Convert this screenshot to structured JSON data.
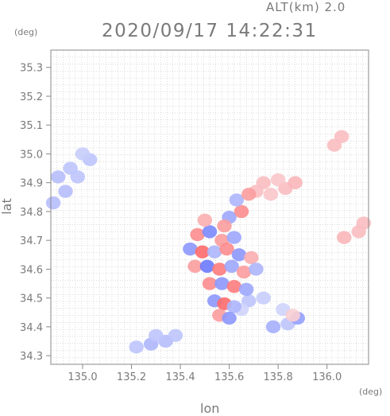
{
  "header": {
    "altitude_label": "ALT(km)  2.0",
    "timestamp": "2020/09/17 14:22:31"
  },
  "axes": {
    "y_unit": "(deg)",
    "x_unit": "(deg)",
    "y_title": "lat",
    "x_title": "lon"
  },
  "chart_data": {
    "type": "heatmap",
    "xlabel": "lon",
    "ylabel": "lat",
    "xlim": [
      134.87,
      136.17
    ],
    "ylim": [
      34.27,
      35.36
    ],
    "x_ticks": [
      {
        "value": 135.0,
        "label": "135.0"
      },
      {
        "value": 135.2,
        "label": "135.2"
      },
      {
        "value": 135.4,
        "label": "135.4"
      },
      {
        "value": 135.6,
        "label": "135.6"
      },
      {
        "value": 135.8,
        "label": "135.8"
      },
      {
        "value": 136.0,
        "label": "136.0"
      }
    ],
    "y_ticks": [
      {
        "value": 34.3,
        "label": "34.3"
      },
      {
        "value": 34.4,
        "label": "34.4"
      },
      {
        "value": 34.5,
        "label": "34.5"
      },
      {
        "value": 34.6,
        "label": "34.6"
      },
      {
        "value": 34.7,
        "label": "34.7"
      },
      {
        "value": 34.8,
        "label": "34.8"
      },
      {
        "value": 34.9,
        "label": "34.9"
      },
      {
        "value": 35.0,
        "label": "35.0"
      },
      {
        "value": 35.1,
        "label": "35.1"
      },
      {
        "value": 35.2,
        "label": "35.2"
      },
      {
        "value": 35.3,
        "label": "35.3"
      }
    ],
    "grid": true,
    "colors": {
      "grid": "#bdbdbd",
      "frame": "#888888",
      "negative": "#4a5cff",
      "negative_light": "#cfd4fb",
      "positive": "#ff4a4a",
      "positive_light": "#f9cfd2"
    },
    "regions": [
      {
        "name": "west-blue-patch",
        "cells": [
          [
            134.88,
            34.83,
            -0.35
          ],
          [
            134.93,
            34.87,
            -0.35
          ],
          [
            134.98,
            34.92,
            -0.3
          ],
          [
            135.03,
            34.98,
            -0.3
          ],
          [
            134.9,
            34.92,
            -0.35
          ],
          [
            134.95,
            34.95,
            -0.3
          ],
          [
            135.0,
            35.0,
            -0.25
          ]
        ]
      },
      {
        "name": "south-west-blue-patch",
        "cells": [
          [
            135.22,
            34.33,
            -0.3
          ],
          [
            135.28,
            34.34,
            -0.4
          ],
          [
            135.34,
            34.35,
            -0.35
          ],
          [
            135.38,
            34.37,
            -0.3
          ],
          [
            135.3,
            34.37,
            -0.3
          ]
        ]
      },
      {
        "name": "north-east-red-patch",
        "cells": [
          [
            135.71,
            34.87,
            0.3
          ],
          [
            135.77,
            34.86,
            0.25
          ],
          [
            135.83,
            34.88,
            0.3
          ],
          [
            135.87,
            34.9,
            0.35
          ],
          [
            135.74,
            34.9,
            0.3
          ],
          [
            135.8,
            34.91,
            0.25
          ]
        ]
      },
      {
        "name": "east-red-patch",
        "cells": [
          [
            136.07,
            34.71,
            0.35
          ],
          [
            136.13,
            34.73,
            0.3
          ],
          [
            136.15,
            34.76,
            0.3
          ]
        ]
      },
      {
        "name": "far-north-east-red-patch",
        "cells": [
          [
            136.03,
            35.03,
            0.3
          ],
          [
            136.06,
            35.06,
            0.3
          ]
        ]
      },
      {
        "name": "south-east-blue-patch",
        "cells": [
          [
            135.78,
            34.4,
            -0.45
          ],
          [
            135.84,
            34.41,
            -0.3
          ],
          [
            135.88,
            34.43,
            -0.55
          ],
          [
            135.82,
            34.46,
            -0.2
          ],
          [
            135.86,
            34.44,
            0.15
          ]
        ]
      },
      {
        "name": "south-blue-patch",
        "cells": [
          [
            135.68,
            34.49,
            -0.3
          ],
          [
            135.74,
            34.5,
            -0.25
          ],
          [
            135.65,
            34.46,
            -0.2
          ]
        ]
      },
      {
        "name": "central-mixed-cluster",
        "cells": [
          [
            135.47,
            34.72,
            0.6
          ],
          [
            135.52,
            34.73,
            -0.7
          ],
          [
            135.57,
            34.7,
            0.5
          ],
          [
            135.62,
            34.71,
            -0.5
          ],
          [
            135.44,
            34.67,
            -0.6
          ],
          [
            135.49,
            34.66,
            0.8
          ],
          [
            135.54,
            34.66,
            -0.4
          ],
          [
            135.59,
            34.67,
            0.6
          ],
          [
            135.64,
            34.65,
            -0.6
          ],
          [
            135.69,
            34.64,
            0.4
          ],
          [
            135.46,
            34.61,
            0.5
          ],
          [
            135.51,
            34.61,
            -0.8
          ],
          [
            135.56,
            34.6,
            0.7
          ],
          [
            135.61,
            34.61,
            -0.5
          ],
          [
            135.66,
            34.59,
            0.5
          ],
          [
            135.71,
            34.6,
            -0.4
          ],
          [
            135.52,
            34.55,
            0.6
          ],
          [
            135.57,
            34.55,
            -0.6
          ],
          [
            135.62,
            34.54,
            0.7
          ],
          [
            135.67,
            34.53,
            -0.5
          ],
          [
            135.54,
            34.49,
            -0.6
          ],
          [
            135.58,
            34.48,
            0.8
          ],
          [
            135.62,
            34.47,
            -0.4
          ],
          [
            135.56,
            34.44,
            0.5
          ],
          [
            135.6,
            34.43,
            -0.6
          ],
          [
            135.6,
            34.78,
            -0.5
          ],
          [
            135.65,
            34.8,
            0.6
          ],
          [
            135.63,
            34.84,
            -0.4
          ],
          [
            135.68,
            34.86,
            0.5
          ],
          [
            135.5,
            34.77,
            0.4
          ],
          [
            135.58,
            34.75,
            0.5
          ]
        ]
      }
    ]
  }
}
